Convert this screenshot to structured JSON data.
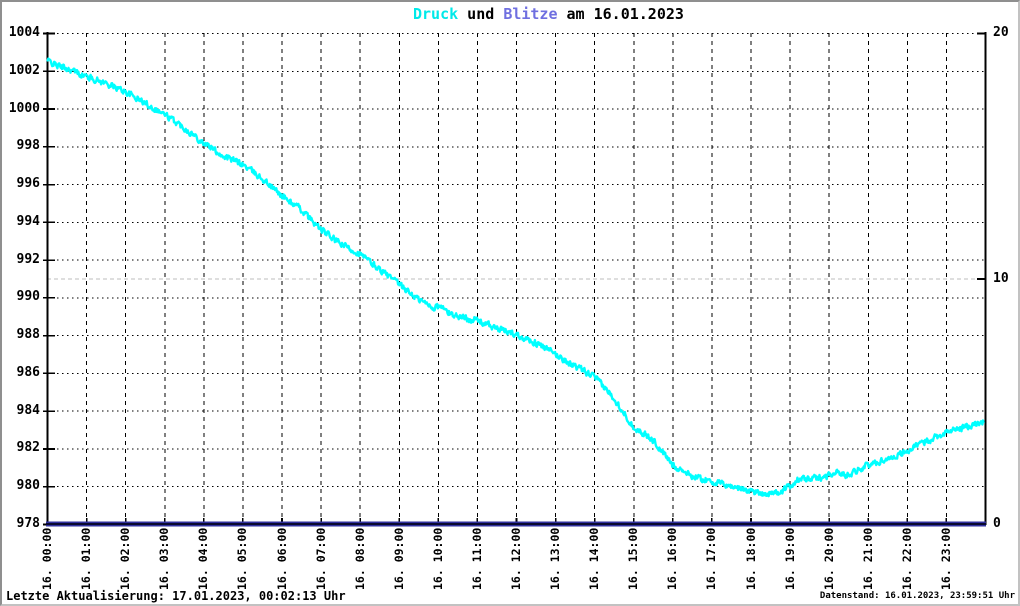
{
  "title": {
    "parts": [
      {
        "text": "Druck",
        "color": "#00e9e9"
      },
      {
        "text": " und ",
        "color": "#000000"
      },
      {
        "text": "Blitze",
        "color": "#6f6fe0"
      },
      {
        "text": " am 16.01.2023",
        "color": "#000000"
      }
    ]
  },
  "footer": {
    "left": "Letzte Aktualisierung: 17.01.2023, 00:02:13 Uhr",
    "right": "Datenstand: 16.01.2023, 23:59:51 Uhr"
  },
  "chart_data": {
    "type": "line",
    "title": "Druck und Blitze am 16.01.2023",
    "x_axis": {
      "unit": "time of day on 16.01.2023",
      "range_hours": [
        0,
        24
      ],
      "tick_interval_hours": 1,
      "tick_labels": [
        "16. 00:00",
        "16. 01:00",
        "16. 02:00",
        "16. 03:00",
        "16. 04:00",
        "16. 05:00",
        "16. 06:00",
        "16. 07:00",
        "16. 08:00",
        "16. 09:00",
        "16. 10:00",
        "16. 11:00",
        "16. 12:00",
        "16. 13:00",
        "16. 14:00",
        "16. 15:00",
        "16. 16:00",
        "16. 17:00",
        "16. 18:00",
        "16. 19:00",
        "16. 20:00",
        "16. 21:00",
        "16. 22:00",
        "16. 23:00"
      ]
    },
    "y_axis_left": {
      "series": "Druck (hPa)",
      "range": [
        978,
        1004
      ],
      "tick_step": 2,
      "ticks": [
        978,
        980,
        982,
        984,
        986,
        988,
        990,
        992,
        994,
        996,
        998,
        1000,
        1002,
        1004
      ]
    },
    "y_axis_right": {
      "series": "Blitze",
      "range": [
        0,
        20
      ],
      "ticks": [
        0,
        10,
        20
      ],
      "gray_gridline_at": 10
    },
    "grid": true,
    "legend_position": "none",
    "series": [
      {
        "name": "Druck",
        "color": "#00ffff",
        "axis": "left",
        "anchors_time_h_vs_hpa": [
          [
            0,
            1002.55
          ],
          [
            0.3,
            1002.25
          ],
          [
            0.6,
            1002.05
          ],
          [
            1,
            1001.7
          ],
          [
            1.5,
            1001.35
          ],
          [
            2,
            1000.9
          ],
          [
            2.5,
            1000.3
          ],
          [
            3,
            999.7
          ],
          [
            3.5,
            999.0
          ],
          [
            4,
            998.2
          ],
          [
            4.5,
            997.5
          ],
          [
            5,
            997.05
          ],
          [
            5.5,
            996.3
          ],
          [
            6,
            995.4
          ],
          [
            6.5,
            994.65
          ],
          [
            7,
            993.6
          ],
          [
            7.5,
            992.85
          ],
          [
            8,
            992.3
          ],
          [
            8.5,
            991.5
          ],
          [
            9,
            990.7
          ],
          [
            9.5,
            989.9
          ],
          [
            9.9,
            989.45
          ],
          [
            10.05,
            989.55
          ],
          [
            10.3,
            989.15
          ],
          [
            10.6,
            988.95
          ],
          [
            11,
            988.8
          ],
          [
            11.5,
            988.35
          ],
          [
            12,
            988.05
          ],
          [
            12.5,
            987.6
          ],
          [
            13,
            987.0
          ],
          [
            13.5,
            986.35
          ],
          [
            14,
            985.8
          ],
          [
            14.5,
            984.7
          ],
          [
            15,
            983.15
          ],
          [
            15.5,
            982.45
          ],
          [
            16,
            981.15
          ],
          [
            16.5,
            980.55
          ],
          [
            17,
            980.25
          ],
          [
            17.5,
            980.0
          ],
          [
            18,
            979.75
          ],
          [
            18.4,
            979.6
          ],
          [
            18.8,
            979.7
          ],
          [
            19.05,
            980.1
          ],
          [
            19.2,
            980.35
          ],
          [
            19.6,
            980.4
          ],
          [
            19.9,
            980.5
          ],
          [
            20.15,
            980.75
          ],
          [
            20.45,
            980.6
          ],
          [
            21,
            981.1
          ],
          [
            21.5,
            981.45
          ],
          [
            22,
            981.85
          ],
          [
            22.5,
            982.4
          ],
          [
            23,
            982.85
          ],
          [
            23.5,
            983.15
          ],
          [
            24,
            983.4
          ]
        ]
      },
      {
        "name": "Blitze",
        "color": "#31319e",
        "axis": "right",
        "constant_value": 0
      }
    ]
  },
  "colors": {
    "grid_black": "#000000",
    "grid_gray": "#bdbdbd",
    "axis": "#000000",
    "druck_line": "#00ffff",
    "blitze_line": "#31319e"
  }
}
